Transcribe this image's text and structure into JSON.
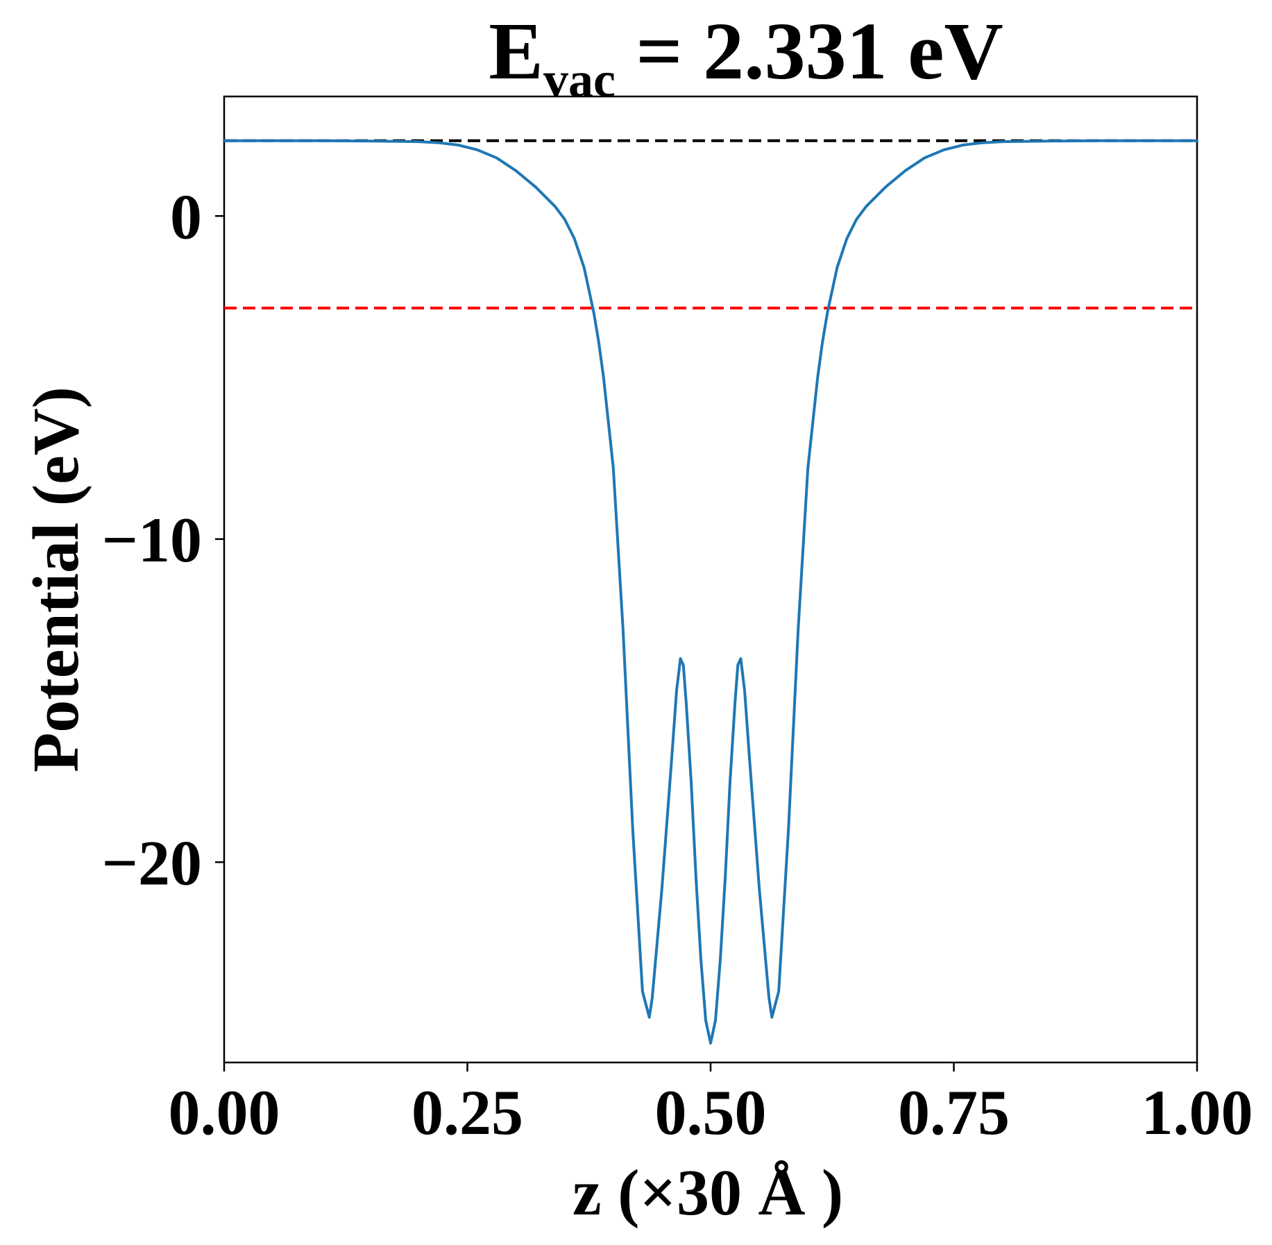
{
  "chart_data": {
    "type": "line",
    "title": {
      "main": "E",
      "subscript": "vac",
      "rest": " = 2.331 eV"
    },
    "xlabel": "z (×30 Å )",
    "ylabel": "Potential (eV)",
    "xlim": [
      0.0,
      1.0
    ],
    "ylim": [
      -26.2,
      3.7
    ],
    "xticks": [
      0.0,
      0.25,
      0.5,
      0.75,
      1.0
    ],
    "xtick_labels": [
      "0.00",
      "0.25",
      "0.50",
      "0.75",
      "1.00"
    ],
    "yticks": [
      0,
      -10,
      -20
    ],
    "ytick_labels": [
      "0",
      "−10",
      "−20"
    ],
    "grid": false,
    "reference_lines": [
      {
        "name": "vacuum-level",
        "y": 2.331,
        "color": "#000000",
        "style": "dashed"
      },
      {
        "name": "fermi-level",
        "y": -2.85,
        "color": "#ff0000",
        "style": "dashed"
      }
    ],
    "series": [
      {
        "name": "planar-average-potential",
        "color": "#1f77b4",
        "x": [
          0.0,
          0.05,
          0.1,
          0.15,
          0.2,
          0.22,
          0.24,
          0.26,
          0.28,
          0.3,
          0.32,
          0.34,
          0.35,
          0.36,
          0.37,
          0.38,
          0.385,
          0.39,
          0.4,
          0.41,
          0.42,
          0.43,
          0.437,
          0.44,
          0.445,
          0.45,
          0.455,
          0.46,
          0.465,
          0.469,
          0.472,
          0.475,
          0.48,
          0.485,
          0.49,
          0.495,
          0.5,
          0.505,
          0.51,
          0.515,
          0.52,
          0.525,
          0.528,
          0.531,
          0.535,
          0.54,
          0.545,
          0.55,
          0.555,
          0.56,
          0.563,
          0.57,
          0.58,
          0.59,
          0.6,
          0.61,
          0.615,
          0.62,
          0.63,
          0.64,
          0.65,
          0.66,
          0.68,
          0.7,
          0.72,
          0.74,
          0.76,
          0.78,
          0.8,
          0.85,
          0.9,
          0.95,
          1.0
        ],
        "y": [
          2.33,
          2.33,
          2.33,
          2.32,
          2.3,
          2.27,
          2.2,
          2.05,
          1.8,
          1.4,
          0.9,
          0.3,
          -0.1,
          -0.7,
          -1.6,
          -3.0,
          -3.9,
          -5.0,
          -7.8,
          -12.8,
          -19.0,
          -24.0,
          -24.8,
          -24.2,
          -22.5,
          -20.8,
          -18.8,
          -16.8,
          -14.7,
          -13.7,
          -13.9,
          -15.1,
          -17.5,
          -20.5,
          -23.0,
          -24.9,
          -25.6,
          -24.9,
          -23.0,
          -20.5,
          -17.5,
          -15.1,
          -13.9,
          -13.7,
          -14.7,
          -16.8,
          -18.8,
          -20.8,
          -22.5,
          -24.2,
          -24.8,
          -24.0,
          -19.0,
          -12.8,
          -7.8,
          -5.0,
          -3.9,
          -3.0,
          -1.6,
          -0.7,
          -0.1,
          0.3,
          0.9,
          1.4,
          1.8,
          2.05,
          2.2,
          2.27,
          2.3,
          2.32,
          2.33,
          2.33,
          2.33
        ]
      }
    ]
  }
}
